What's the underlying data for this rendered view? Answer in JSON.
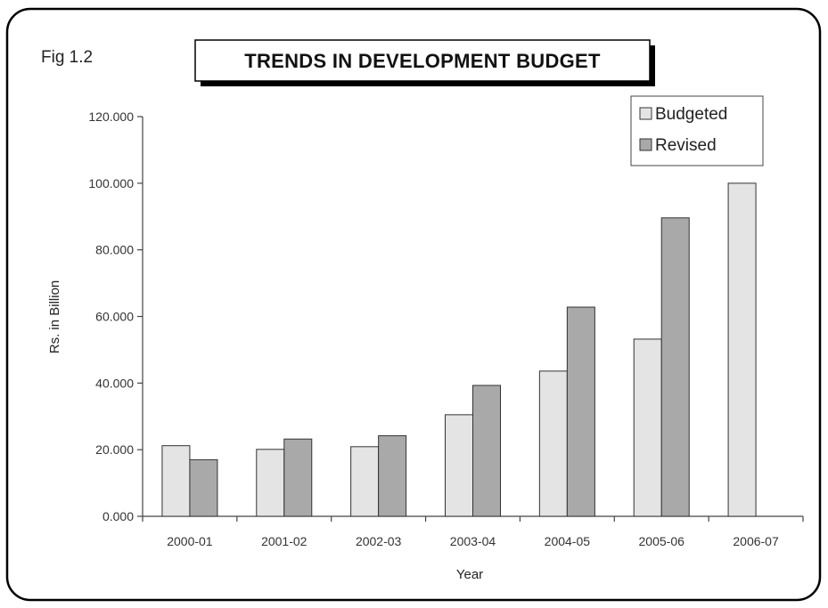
{
  "figure": {
    "label": "Fig 1.2"
  },
  "chart_data": {
    "type": "bar",
    "title": "TRENDS IN DEVELOPMENT BUDGET",
    "xlabel": "Year",
    "ylabel": "Rs. in Billion",
    "categories": [
      "2000-01",
      "2001-02",
      "2002-03",
      "2003-04",
      "2004-05",
      "2005-06",
      "2006-07"
    ],
    "series": [
      {
        "name": "Budgeted",
        "color": "#e4e4e4",
        "values": [
          21.2,
          20.1,
          20.9,
          30.5,
          43.6,
          53.2,
          100.0
        ]
      },
      {
        "name": "Revised",
        "color": "#a9a9a9",
        "values": [
          17.0,
          23.2,
          24.2,
          39.3,
          62.8,
          89.6,
          null
        ]
      }
    ],
    "ylim": [
      0,
      120
    ],
    "yticks": [
      "0.000",
      "20.000",
      "40.000",
      "60.000",
      "80.000",
      "100.000",
      "120.000"
    ],
    "grid": false,
    "legend_position": "top-right"
  }
}
